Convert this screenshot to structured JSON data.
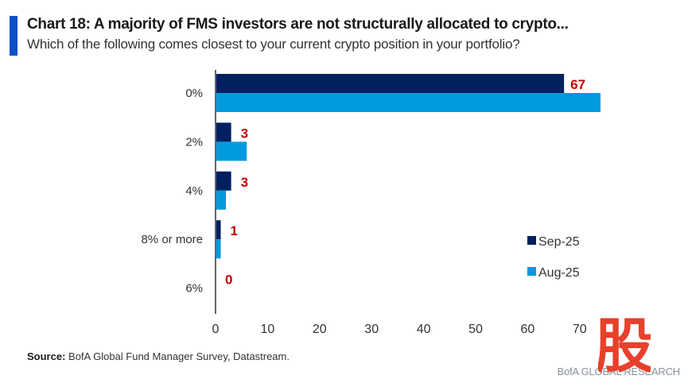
{
  "header": {
    "title": "Chart 18: A majority of FMS investors are not structurally allocated to crypto...",
    "subtitle": "Which of the following comes closest to your current crypto position in your portfolio?"
  },
  "footer": {
    "source_label": "Source:",
    "source_text": " BofA Global Fund Manager Survey, Datastream.",
    "branding": "BofA GLOBAL RESEARCH",
    "watermark_glyph": "股"
  },
  "colors": {
    "accent_bar": "#0a50c8",
    "sep25": "#002060",
    "aug25": "#009ADE",
    "data_label": "#c00000",
    "watermark": "#e8402a"
  },
  "chart_data": {
    "type": "bar",
    "orientation": "horizontal",
    "title": "Chart 18: A majority of FMS investors are not structurally allocated to crypto...",
    "subtitle": "Which of the following comes closest to your current crypto position in your portfolio?",
    "categories": [
      "0%",
      "2%",
      "4%",
      "8% or more",
      "6%"
    ],
    "series": [
      {
        "name": "Sep-25",
        "values": [
          67,
          3,
          3,
          1,
          0
        ],
        "color": "#002060",
        "show_labels": true
      },
      {
        "name": "Aug-25",
        "values": [
          74,
          6,
          2,
          1,
          0
        ],
        "color": "#009ADE",
        "show_labels": false
      }
    ],
    "data_labels": [
      "67",
      "3",
      "3",
      "1",
      "0"
    ],
    "xlabel": "",
    "ylabel": "",
    "xlim": [
      0,
      80
    ],
    "xticks": [
      0,
      10,
      20,
      30,
      40,
      50,
      60,
      70
    ],
    "grid": false,
    "legend": {
      "position": "bottom-right",
      "entries": [
        "Sep-25",
        "Aug-25"
      ]
    }
  }
}
